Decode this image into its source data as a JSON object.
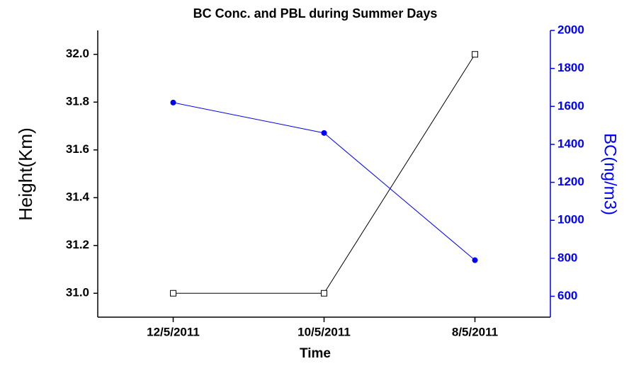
{
  "chart_data": {
    "type": "line",
    "title": "BC Conc. and PBL during Summer Days",
    "x_label": "Time",
    "y_label": "Height(Km)",
    "y2_label": "BC(ng/m3)",
    "categories": [
      "12/5/2011",
      "10/5/2011",
      "8/5/2011"
    ],
    "series": [
      {
        "name": "Height",
        "color": "#000000",
        "marker": "square",
        "values": [
          31.0,
          31.0,
          32.0
        ]
      },
      {
        "name": "BC",
        "color": "#0000ff",
        "marker": "circle",
        "axis": "y2",
        "values": [
          1620,
          1460,
          790
        ]
      }
    ],
    "ylim": [
      30.9,
      32.1
    ],
    "yticks": [
      {
        "value": 31.0,
        "label": "31.0"
      },
      31.2,
      31.4,
      31.6,
      31.8,
      {
        "value": 32.0,
        "label": "32.0"
      }
    ],
    "y2lim": [
      490,
      2000
    ],
    "y2ticks": [
      600,
      800,
      1000,
      1200,
      1400,
      1600,
      1800,
      2000
    ],
    "y2color": "#0000ff"
  }
}
